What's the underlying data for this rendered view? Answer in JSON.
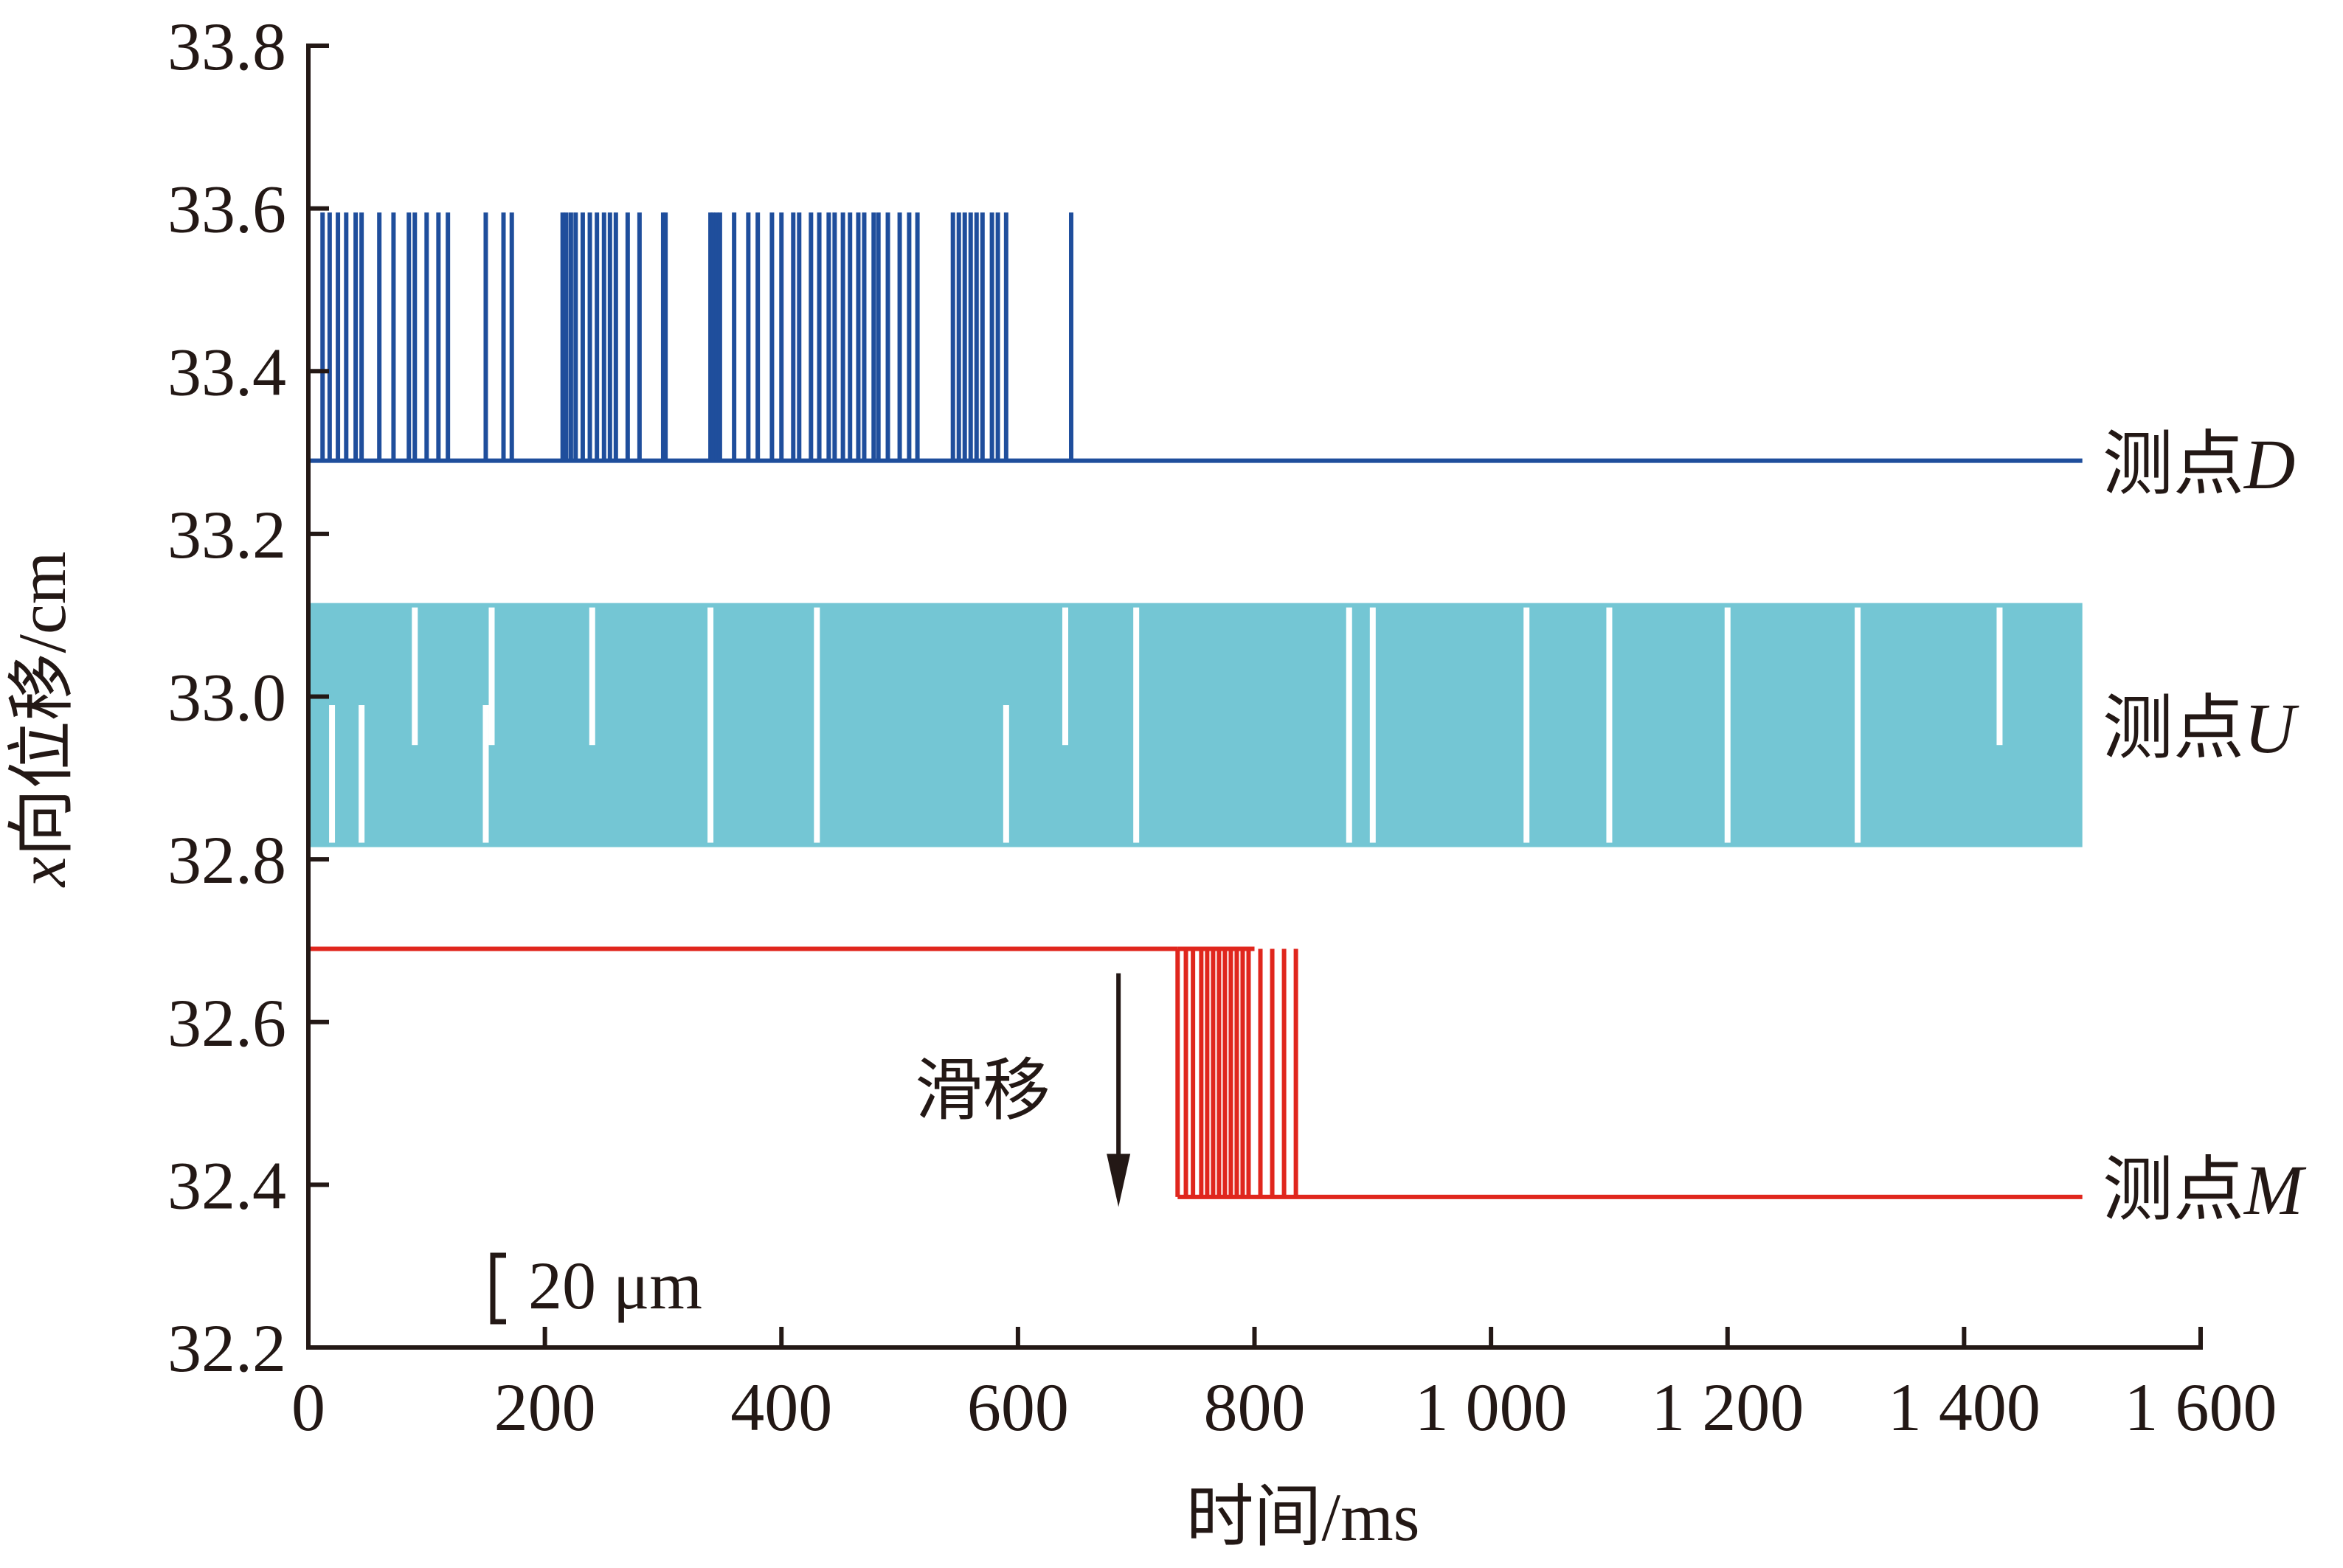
{
  "chart_data": {
    "type": "line",
    "xlabel": "时间/ms",
    "ylabel_var": "x",
    "ylabel_rest": "向位移/cm",
    "xlim": [
      0,
      1600
    ],
    "ylim": [
      32.2,
      33.8
    ],
    "xticks": [
      0,
      200,
      400,
      600,
      800,
      1000,
      1200,
      1400,
      1600
    ],
    "xtick_labels": [
      "0",
      "200",
      "400",
      "600",
      "800",
      "1 000",
      "1 200",
      "1 400",
      "1 600"
    ],
    "yticks": [
      32.2,
      32.4,
      32.6,
      32.8,
      33.0,
      33.2,
      33.4,
      33.6,
      33.8
    ],
    "ytick_labels": [
      "32.2",
      "32.4",
      "32.6",
      "32.8",
      "33.0",
      "33.2",
      "33.4",
      "33.6",
      "33.8"
    ],
    "grid": false,
    "series": [
      {
        "name": "测点D",
        "label_prefix": "测点",
        "label_var": "D",
        "color": "#1f4e9c",
        "baseline": 33.29,
        "peak": 33.595,
        "x_range": [
          0,
          1500
        ],
        "pulse_x": [
          12,
          18,
          25,
          32,
          40,
          45,
          60,
          72,
          85,
          90,
          100,
          110,
          118,
          150,
          165,
          172,
          215,
          218,
          222,
          226,
          232,
          238,
          244,
          250,
          255,
          260,
          270,
          280,
          300,
          302,
          340,
          342,
          345,
          348,
          360,
          372,
          380,
          392,
          400,
          410,
          415,
          425,
          432,
          440,
          445,
          452,
          458,
          465,
          470,
          478,
          482,
          490,
          500,
          508,
          515,
          545,
          550,
          555,
          560,
          565,
          570,
          578,
          583,
          590,
          645
        ]
      },
      {
        "name": "测点U",
        "label_prefix": "测点",
        "label_var": "U",
        "color": "#74c6d4",
        "low": 32.815,
        "high": 33.115,
        "x_range": [
          0,
          1500
        ],
        "gaps": [
          {
            "x": 20,
            "side": "low"
          },
          {
            "x": 45,
            "side": "low"
          },
          {
            "x": 90,
            "side": "high"
          },
          {
            "x": 150,
            "side": "low"
          },
          {
            "x": 155,
            "side": "high"
          },
          {
            "x": 240,
            "side": "high"
          },
          {
            "x": 340,
            "side": "both"
          },
          {
            "x": 430,
            "side": "both"
          },
          {
            "x": 590,
            "side": "low"
          },
          {
            "x": 640,
            "side": "high"
          },
          {
            "x": 700,
            "side": "both"
          },
          {
            "x": 880,
            "side": "both"
          },
          {
            "x": 900,
            "side": "both"
          },
          {
            "x": 1030,
            "side": "both"
          },
          {
            "x": 1100,
            "side": "both"
          },
          {
            "x": 1200,
            "side": "both"
          },
          {
            "x": 1310,
            "side": "both"
          },
          {
            "x": 1430,
            "side": "high"
          }
        ]
      },
      {
        "name": "测点M",
        "label_prefix": "测点",
        "label_var": "M",
        "color": "#e0261d",
        "high": 32.69,
        "low": 32.385,
        "x_range": [
          0,
          1500
        ],
        "transition": [
          735,
          835
        ],
        "pulse_x": [
          735,
          742,
          748,
          755,
          760,
          765,
          770,
          775,
          780,
          785,
          790,
          795,
          805,
          815,
          825,
          835
        ]
      }
    ],
    "annotation": {
      "text": "滑移",
      "arrow_x": 685,
      "arrow_y_from": 32.66,
      "arrow_y_to": 32.38
    },
    "scale_bar": {
      "text": "20 μm"
    }
  }
}
